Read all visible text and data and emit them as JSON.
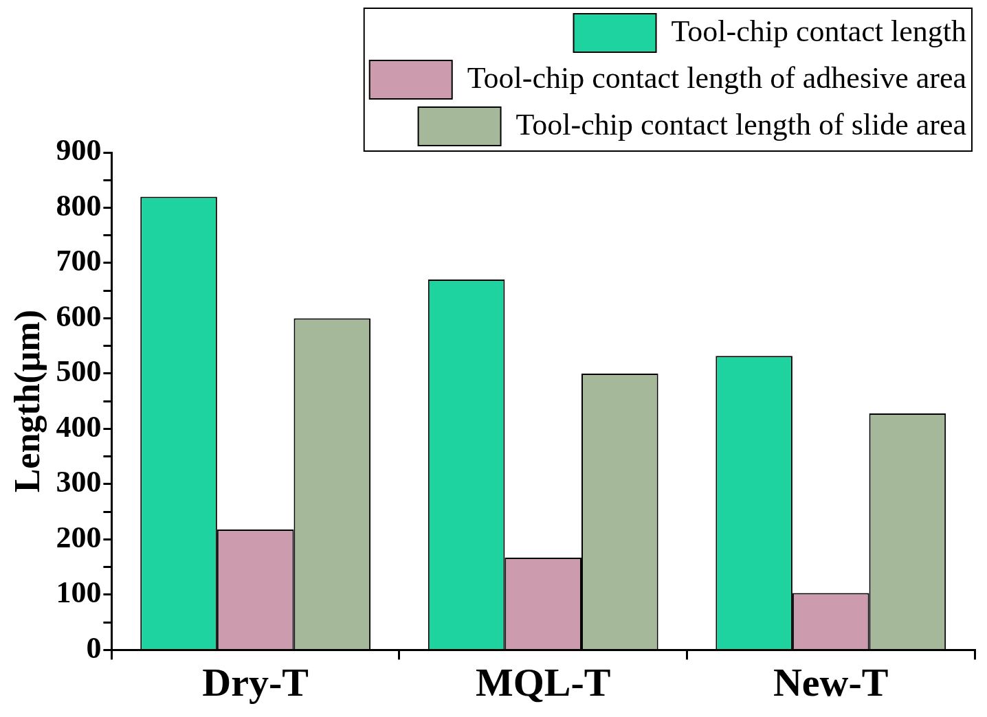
{
  "chart_data": {
    "type": "bar",
    "ylabel": "Length(μm)",
    "categories": [
      "Dry-T",
      "MQL-T",
      "New-T"
    ],
    "series": [
      {
        "name": "Tool-chip contact length",
        "color": "#1fd3a0",
        "values": [
          820,
          670,
          532
        ]
      },
      {
        "name": "Tool-chip contact length of adhesive area",
        "color": "#cc9cae",
        "values": [
          218,
          167,
          103
        ]
      },
      {
        "name": "Tool-chip contact length of slide area",
        "color": "#a6b89a",
        "values": [
          600,
          500,
          428
        ]
      }
    ],
    "ylim": [
      0,
      900
    ],
    "yticks": [
      0,
      {
        "value": 50,
        "label": null
      },
      100,
      {
        "value": 150,
        "label": null
      },
      200,
      {
        "value": 250,
        "label": null
      },
      300,
      {
        "value": 350,
        "label": null
      },
      400,
      {
        "value": 450,
        "label": null
      },
      500,
      {
        "value": 550,
        "label": null
      },
      600,
      {
        "value": 650,
        "label": null
      },
      700,
      {
        "value": 750,
        "label": null
      },
      800,
      {
        "value": 850,
        "label": null
      },
      900
    ],
    "grid": false,
    "legend": "top right"
  }
}
